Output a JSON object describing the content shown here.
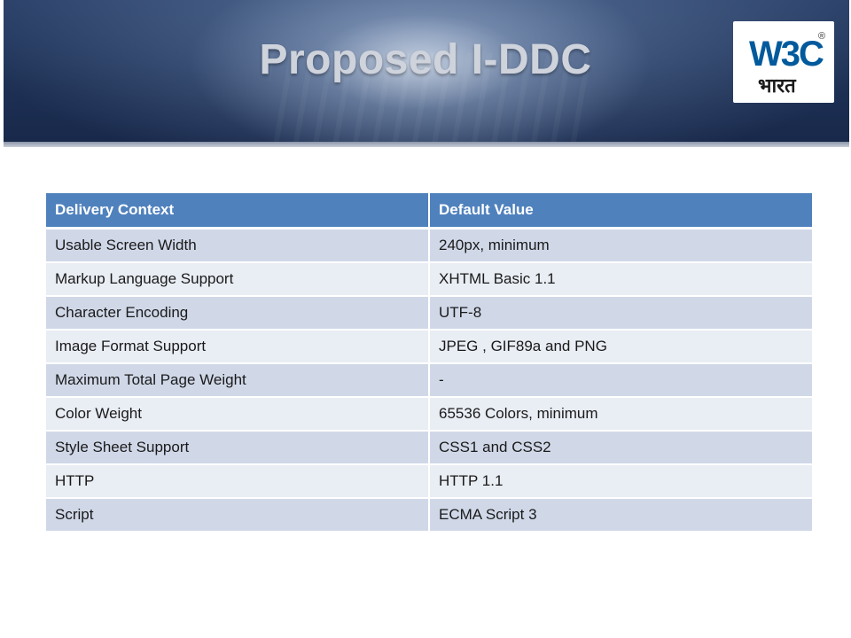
{
  "slide": {
    "title": "Proposed I-DDC"
  },
  "logo": {
    "text": "W3C",
    "subtext": "भारत",
    "registered": "®"
  },
  "table": {
    "headers": [
      "Delivery Context",
      "Default Value"
    ],
    "rows": [
      [
        "Usable Screen Width",
        "240px, minimum"
      ],
      [
        "Markup Language Support",
        "XHTML Basic 1.1"
      ],
      [
        "Character Encoding",
        "UTF-8"
      ],
      [
        "Image Format Support",
        "JPEG , GIF89a and PNG"
      ],
      [
        "Maximum Total Page Weight",
        "-"
      ],
      [
        "Color Weight",
        "65536 Colors, minimum"
      ],
      [
        "Style Sheet Support",
        "CSS1 and CSS2"
      ],
      [
        "HTTP",
        "HTTP 1.1"
      ],
      [
        "Script",
        "ECMA Script 3"
      ]
    ]
  },
  "colors": {
    "header_fill": "#4f81bd",
    "row_band_dark": "#d0d8e8",
    "row_band_light": "#e9edf4",
    "banner_dark": "#1d3054",
    "logo_blue": "#005a9c"
  }
}
